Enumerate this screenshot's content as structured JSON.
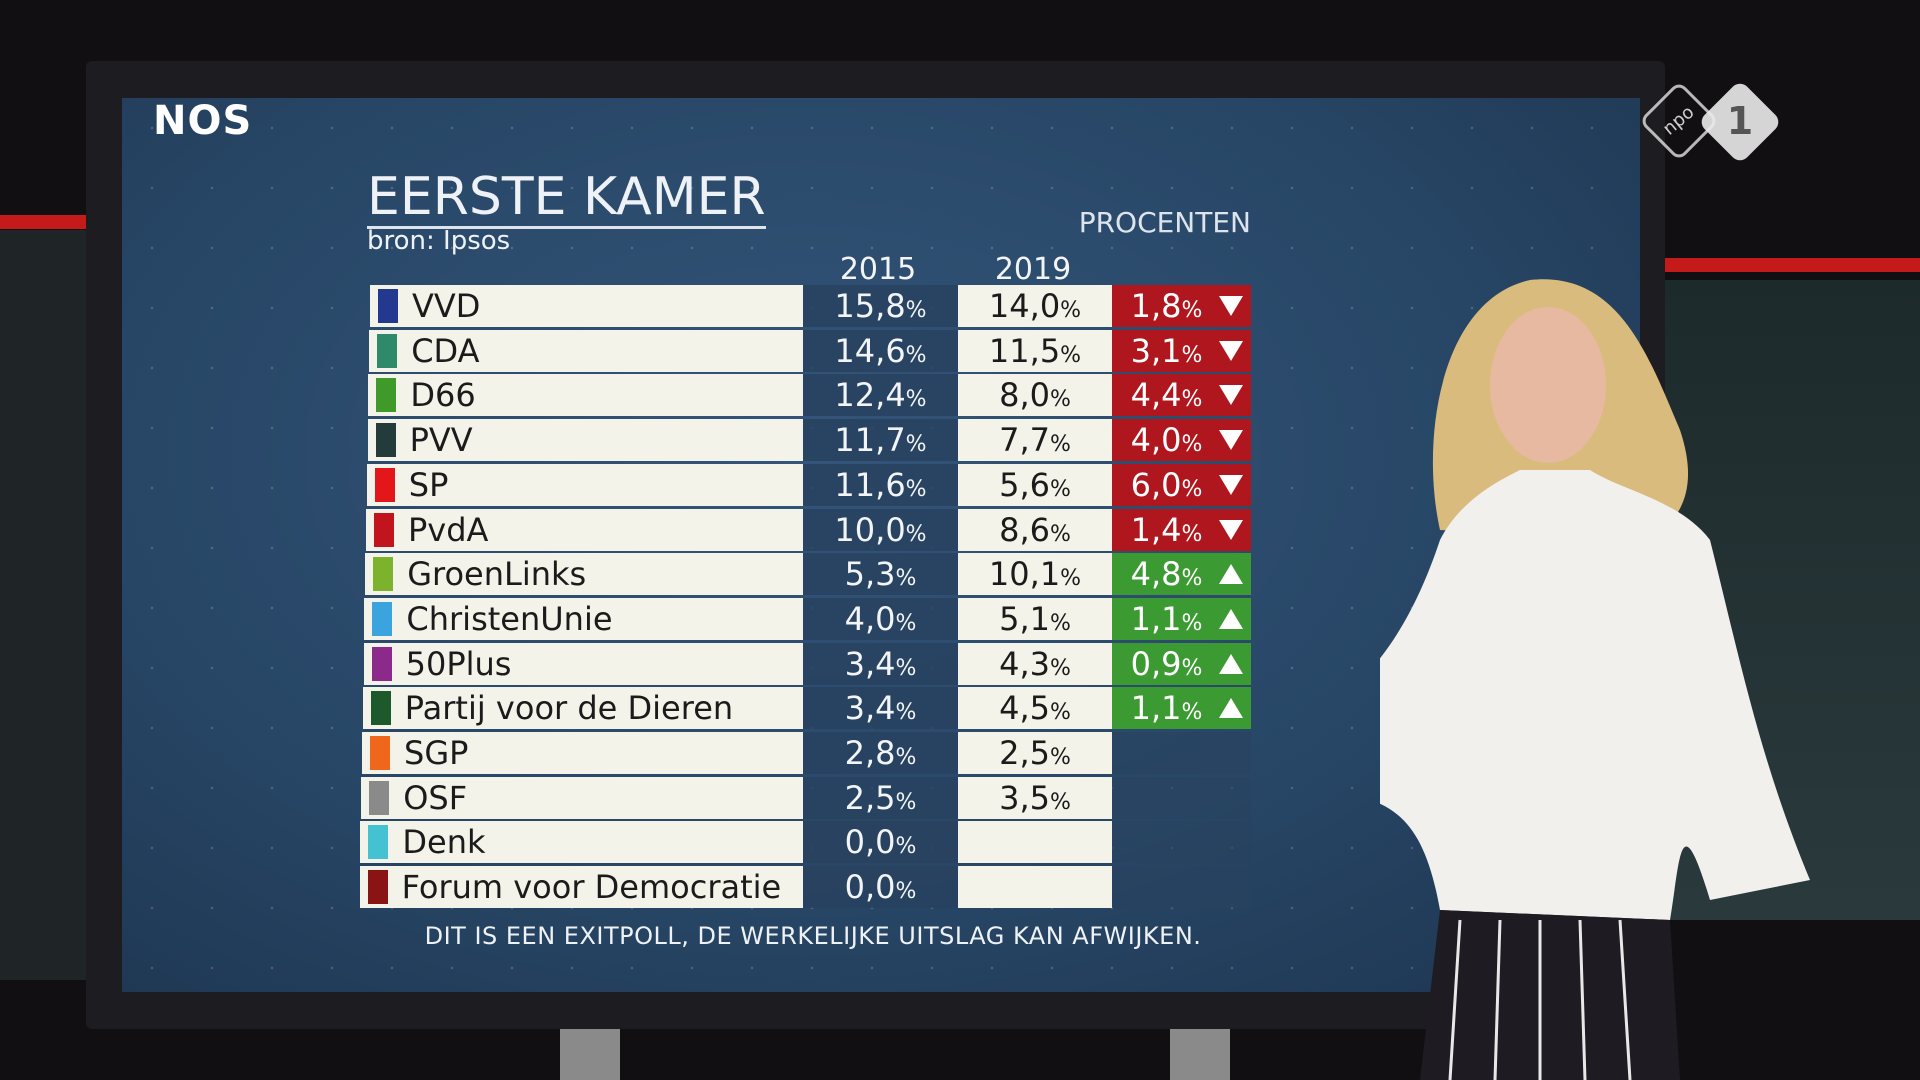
{
  "logo": "NOS",
  "channel_logo": {
    "brand": "npo",
    "number": "1"
  },
  "header": {
    "title": "EERSTE KAMER",
    "source": "bron: Ipsos",
    "unit": "PROCENTEN"
  },
  "table": {
    "columns": [
      "2015",
      "2019"
    ],
    "rows": [
      {
        "party": "VVD",
        "color": "#23388f",
        "2015": "15,8%",
        "2019": "14,0%",
        "change": "1,8%",
        "trend": "down"
      },
      {
        "party": "CDA",
        "color": "#2f8a6c",
        "2015": "14,6%",
        "2019": "11,5%",
        "change": "3,1%",
        "trend": "down"
      },
      {
        "party": "D66",
        "color": "#3f9a2a",
        "2015": "12,4%",
        "2019": "8,0%",
        "change": "4,4%",
        "trend": "down"
      },
      {
        "party": "PVV",
        "color": "#233b3b",
        "2015": "11,7%",
        "2019": "7,7%",
        "change": "4,0%",
        "trend": "down"
      },
      {
        "party": "SP",
        "color": "#e3161a",
        "2015": "11,6%",
        "2019": "5,6%",
        "change": "6,0%",
        "trend": "down"
      },
      {
        "party": "PvdA",
        "color": "#c2141c",
        "2015": "10,0%",
        "2019": "8,6%",
        "change": "1,4%",
        "trend": "down"
      },
      {
        "party": "GroenLinks",
        "color": "#7db32c",
        "2015": "5,3%",
        "2019": "10,1%",
        "change": "4,8%",
        "trend": "up"
      },
      {
        "party": "ChristenUnie",
        "color": "#3ba3de",
        "2015": "4,0%",
        "2019": "5,1%",
        "change": "1,1%",
        "trend": "up"
      },
      {
        "party": "50Plus",
        "color": "#8c2a8c",
        "2015": "3,4%",
        "2019": "4,3%",
        "change": "0,9%",
        "trend": "up"
      },
      {
        "party": "Partij voor de Dieren",
        "color": "#1c5a2c",
        "2015": "3,4%",
        "2019": "4,5%",
        "change": "1,1%",
        "trend": "up"
      },
      {
        "party": "SGP",
        "color": "#f0661a",
        "2015": "2,8%",
        "2019": "2,5%"
      },
      {
        "party": "OSF",
        "color": "#8a8a8a",
        "2015": "2,5%",
        "2019": "3,5%"
      },
      {
        "party": "Denk",
        "color": "#45c2d2",
        "2015": "0,0%"
      },
      {
        "party": "Forum voor Democratie",
        "color": "#8a1414",
        "2015": "0,0%"
      }
    ]
  },
  "footer": "DIT IS EEN EXITPOLL, DE WERKELIJKE UITSLAG KAN AFWIJKEN."
}
